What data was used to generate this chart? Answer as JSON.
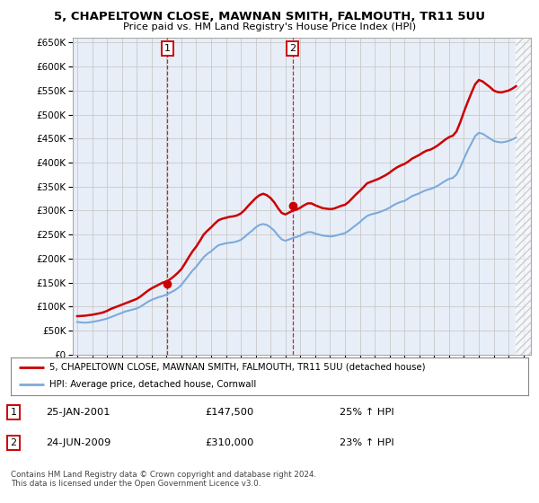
{
  "title": "5, CHAPELTOWN CLOSE, MAWNAN SMITH, FALMOUTH, TR11 5UU",
  "subtitle": "Price paid vs. HM Land Registry's House Price Index (HPI)",
  "ylim": [
    0,
    660000
  ],
  "yticks": [
    0,
    50000,
    100000,
    150000,
    200000,
    250000,
    300000,
    350000,
    400000,
    450000,
    500000,
    550000,
    600000,
    650000
  ],
  "ytick_labels": [
    "£0",
    "£50K",
    "£100K",
    "£150K",
    "£200K",
    "£250K",
    "£300K",
    "£350K",
    "£400K",
    "£450K",
    "£500K",
    "£550K",
    "£600K",
    "£650K"
  ],
  "xlim_start": 1994.7,
  "xlim_end": 2025.5,
  "xticks": [
    1995,
    1996,
    1997,
    1998,
    1999,
    2000,
    2001,
    2002,
    2003,
    2004,
    2005,
    2006,
    2007,
    2008,
    2009,
    2010,
    2011,
    2012,
    2013,
    2014,
    2015,
    2016,
    2017,
    2018,
    2019,
    2020,
    2021,
    2022,
    2023,
    2024,
    2025
  ],
  "background_color": "#ffffff",
  "grid_color": "#c8c8c8",
  "plot_bg_color": "#e8eef8",
  "red_line_color": "#cc0000",
  "blue_line_color": "#7aabdc",
  "transaction1_x": 2001.07,
  "transaction1_y": 147500,
  "transaction1_label": "1",
  "transaction1_date": "25-JAN-2001",
  "transaction1_price": "£147,500",
  "transaction1_hpi": "25% ↑ HPI",
  "transaction2_x": 2009.48,
  "transaction2_y": 310000,
  "transaction2_label": "2",
  "transaction2_date": "24-JUN-2009",
  "transaction2_price": "£310,000",
  "transaction2_hpi": "23% ↑ HPI",
  "legend_line1": "5, CHAPELTOWN CLOSE, MAWNAN SMITH, FALMOUTH, TR11 5UU (detached house)",
  "legend_line2": "HPI: Average price, detached house, Cornwall",
  "footer": "Contains HM Land Registry data © Crown copyright and database right 2024.\nThis data is licensed under the Open Government Licence v3.0.",
  "hpi_data_x": [
    1995.0,
    1995.25,
    1995.5,
    1995.75,
    1996.0,
    1996.25,
    1996.5,
    1996.75,
    1997.0,
    1997.25,
    1997.5,
    1997.75,
    1998.0,
    1998.25,
    1998.5,
    1998.75,
    1999.0,
    1999.25,
    1999.5,
    1999.75,
    2000.0,
    2000.25,
    2000.5,
    2000.75,
    2001.0,
    2001.25,
    2001.5,
    2001.75,
    2002.0,
    2002.25,
    2002.5,
    2002.75,
    2003.0,
    2003.25,
    2003.5,
    2003.75,
    2004.0,
    2004.25,
    2004.5,
    2004.75,
    2005.0,
    2005.25,
    2005.5,
    2005.75,
    2006.0,
    2006.25,
    2006.5,
    2006.75,
    2007.0,
    2007.25,
    2007.5,
    2007.75,
    2008.0,
    2008.25,
    2008.5,
    2008.75,
    2009.0,
    2009.25,
    2009.5,
    2009.75,
    2010.0,
    2010.25,
    2010.5,
    2010.75,
    2011.0,
    2011.25,
    2011.5,
    2011.75,
    2012.0,
    2012.25,
    2012.5,
    2012.75,
    2013.0,
    2013.25,
    2013.5,
    2013.75,
    2014.0,
    2014.25,
    2014.5,
    2014.75,
    2015.0,
    2015.25,
    2015.5,
    2015.75,
    2016.0,
    2016.25,
    2016.5,
    2016.75,
    2017.0,
    2017.25,
    2017.5,
    2017.75,
    2018.0,
    2018.25,
    2018.5,
    2018.75,
    2019.0,
    2019.25,
    2019.5,
    2019.75,
    2020.0,
    2020.25,
    2020.5,
    2020.75,
    2021.0,
    2021.25,
    2021.5,
    2021.75,
    2022.0,
    2022.25,
    2022.5,
    2022.75,
    2023.0,
    2023.25,
    2023.5,
    2023.75,
    2024.0,
    2024.25,
    2024.5
  ],
  "hpi_data_y": [
    68000,
    67000,
    66500,
    67000,
    68000,
    69500,
    71000,
    73000,
    75000,
    78000,
    81000,
    84000,
    87000,
    90000,
    92000,
    94000,
    96000,
    100000,
    105000,
    110000,
    114000,
    117000,
    120000,
    122000,
    125000,
    129000,
    133000,
    138000,
    145000,
    155000,
    165000,
    175000,
    183000,
    193000,
    203000,
    210000,
    215000,
    222000,
    228000,
    230000,
    232000,
    233000,
    234000,
    236000,
    239000,
    245000,
    252000,
    258000,
    265000,
    270000,
    272000,
    270000,
    265000,
    258000,
    248000,
    240000,
    237000,
    240000,
    243000,
    245000,
    248000,
    252000,
    255000,
    255000,
    252000,
    250000,
    248000,
    247000,
    246000,
    247000,
    249000,
    251000,
    253000,
    258000,
    264000,
    270000,
    276000,
    283000,
    289000,
    292000,
    294000,
    296000,
    299000,
    302000,
    306000,
    311000,
    315000,
    318000,
    320000,
    325000,
    330000,
    333000,
    336000,
    340000,
    343000,
    345000,
    348000,
    352000,
    357000,
    362000,
    366000,
    368000,
    375000,
    390000,
    408000,
    425000,
    440000,
    455000,
    462000,
    460000,
    455000,
    450000,
    445000,
    443000,
    442000,
    443000,
    445000,
    448000,
    452000
  ],
  "red_data_x": [
    1995.0,
    1995.25,
    1995.5,
    1995.75,
    1996.0,
    1996.25,
    1996.5,
    1996.75,
    1997.0,
    1997.25,
    1997.5,
    1997.75,
    1998.0,
    1998.25,
    1998.5,
    1998.75,
    1999.0,
    1999.25,
    1999.5,
    1999.75,
    2000.0,
    2000.25,
    2000.5,
    2000.75,
    2001.0,
    2001.25,
    2001.5,
    2001.75,
    2002.0,
    2002.25,
    2002.5,
    2002.75,
    2003.0,
    2003.25,
    2003.5,
    2003.75,
    2004.0,
    2004.25,
    2004.5,
    2004.75,
    2005.0,
    2005.25,
    2005.5,
    2005.75,
    2006.0,
    2006.25,
    2006.5,
    2006.75,
    2007.0,
    2007.25,
    2007.5,
    2007.75,
    2008.0,
    2008.25,
    2008.5,
    2008.75,
    2009.0,
    2009.25,
    2009.5,
    2009.75,
    2010.0,
    2010.25,
    2010.5,
    2010.75,
    2011.0,
    2011.25,
    2011.5,
    2011.75,
    2012.0,
    2012.25,
    2012.5,
    2012.75,
    2013.0,
    2013.25,
    2013.5,
    2013.75,
    2014.0,
    2014.25,
    2014.5,
    2014.75,
    2015.0,
    2015.25,
    2015.5,
    2015.75,
    2016.0,
    2016.25,
    2016.5,
    2016.75,
    2017.0,
    2017.25,
    2017.5,
    2017.75,
    2018.0,
    2018.25,
    2018.5,
    2018.75,
    2019.0,
    2019.25,
    2019.5,
    2019.75,
    2020.0,
    2020.25,
    2020.5,
    2020.75,
    2021.0,
    2021.25,
    2021.5,
    2021.75,
    2022.0,
    2022.25,
    2022.5,
    2022.75,
    2023.0,
    2023.25,
    2023.5,
    2023.75,
    2024.0,
    2024.25,
    2024.5
  ],
  "red_data_y": [
    80000,
    80500,
    81000,
    82000,
    83000,
    84500,
    86000,
    88000,
    91000,
    95000,
    98000,
    101000,
    104000,
    107000,
    110000,
    113000,
    116000,
    121000,
    127000,
    133000,
    138000,
    142000,
    146000,
    150000,
    152000,
    157000,
    163000,
    170000,
    178000,
    190000,
    203000,
    215000,
    225000,
    237000,
    250000,
    258000,
    265000,
    273000,
    280000,
    283000,
    285000,
    287000,
    288000,
    290000,
    294000,
    301000,
    310000,
    318000,
    326000,
    332000,
    335000,
    332000,
    326000,
    317000,
    305000,
    295000,
    292000,
    296000,
    300000,
    302000,
    306000,
    311000,
    315000,
    315000,
    311000,
    308000,
    305000,
    304000,
    303000,
    304000,
    307000,
    310000,
    312000,
    318000,
    326000,
    334000,
    341000,
    349000,
    357000,
    360000,
    363000,
    366000,
    370000,
    374000,
    379000,
    385000,
    390000,
    394000,
    397000,
    402000,
    408000,
    412000,
    416000,
    421000,
    425000,
    427000,
    431000,
    436000,
    442000,
    448000,
    453000,
    456000,
    465000,
    484000,
    506000,
    526000,
    545000,
    563000,
    572000,
    569000,
    563000,
    557000,
    550000,
    547000,
    546000,
    548000,
    550000,
    554000,
    559000
  ],
  "hatch_start": 2024.5,
  "hatch_end": 2025.5
}
